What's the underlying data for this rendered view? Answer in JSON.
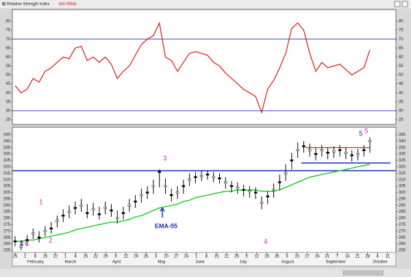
{
  "chart_data": [
    {
      "type": "line",
      "title": "Relative Strength Index",
      "indicator_value": "(64.0564)",
      "ylim": [
        25,
        80
      ],
      "yticks": [
        80,
        75,
        70,
        65,
        60,
        55,
        50,
        45,
        40,
        35,
        30,
        25
      ],
      "levels": [
        70,
        30
      ],
      "level_color": "#3a3ad0",
      "series": [
        {
          "name": "RSI",
          "color": "#e01010",
          "values": [
            44,
            40,
            42,
            48,
            46,
            52,
            54,
            57,
            60,
            59,
            65,
            66,
            58,
            60,
            57,
            60,
            56,
            48,
            52,
            55,
            61,
            67,
            70,
            72,
            79,
            60,
            58,
            52,
            57,
            62,
            63,
            62,
            61,
            57,
            55,
            51,
            48,
            45,
            42,
            40,
            38,
            29,
            42,
            47,
            54,
            62,
            76,
            79,
            75,
            62,
            52,
            57,
            54,
            55,
            56,
            53,
            50,
            52,
            54,
            64
          ]
        }
      ]
    },
    {
      "type": "ohlc",
      "ylim": [
        255,
        345
      ],
      "yticks": [
        345,
        340,
        335,
        330,
        325,
        320,
        315,
        310,
        305,
        300,
        295,
        290,
        285,
        280,
        275,
        270,
        265,
        260,
        255
      ],
      "x_ticks": [
        "25",
        "1",
        "8",
        "15",
        "22",
        "1",
        "8",
        "15",
        "22",
        "29",
        "5",
        "12",
        "19",
        "26",
        "3",
        "10",
        "17",
        "24",
        "1",
        "8",
        "15",
        "22",
        "29",
        "5",
        "12",
        "19",
        "26",
        "3",
        "10",
        "17",
        "24",
        "31",
        "7",
        "14",
        "21",
        "28",
        "4",
        "11"
      ],
      "months": [
        "February",
        "March",
        "April",
        "May",
        "June",
        "July",
        "August",
        "September",
        "October"
      ],
      "high": [
        266,
        263,
        267,
        272,
        270,
        274,
        277,
        282,
        287,
        290,
        293,
        295,
        291,
        292,
        289,
        293,
        291,
        286,
        289,
        295,
        298,
        303,
        305,
        310,
        318,
        311,
        303,
        305,
        310,
        315,
        316,
        317,
        317,
        316,
        315,
        312,
        309,
        308,
        306,
        305,
        304,
        297,
        301,
        307,
        314,
        322,
        331,
        339,
        340,
        338,
        335,
        337,
        335,
        336,
        337,
        335,
        333,
        334,
        337,
        343
      ],
      "low": [
        258,
        255,
        259,
        264,
        261,
        266,
        268,
        273,
        277,
        280,
        283,
        285,
        280,
        282,
        279,
        283,
        281,
        276,
        279,
        285,
        288,
        292,
        295,
        299,
        304,
        299,
        293,
        295,
        299,
        305,
        307,
        309,
        310,
        308,
        307,
        303,
        300,
        299,
        297,
        296,
        295,
        287,
        291,
        296,
        302,
        309,
        318,
        327,
        331,
        328,
        325,
        328,
        326,
        327,
        328,
        326,
        324,
        325,
        328,
        331
      ],
      "close": [
        262,
        258,
        263,
        268,
        265,
        270,
        272,
        278,
        282,
        285,
        288,
        290,
        284,
        287,
        283,
        288,
        286,
        280,
        284,
        290,
        293,
        298,
        300,
        305,
        316,
        305,
        298,
        300,
        305,
        310,
        312,
        313,
        314,
        312,
        311,
        308,
        305,
        304,
        302,
        301,
        300,
        292,
        297,
        302,
        308,
        315,
        325,
        333,
        336,
        333,
        330,
        333,
        331,
        332,
        333,
        331,
        329,
        330,
        333,
        340
      ],
      "series": [
        {
          "name": "EMA-55",
          "color": "#22cc22",
          "values": [
            262,
            262,
            263,
            263,
            264,
            265,
            266,
            267,
            268,
            269,
            271,
            272,
            273,
            274,
            275,
            276,
            277,
            277,
            278,
            279,
            281,
            282,
            284,
            286,
            288,
            289,
            290,
            291,
            293,
            294,
            296,
            297,
            298,
            299,
            300,
            301,
            301,
            302,
            302,
            302,
            302,
            301,
            301,
            301,
            302,
            304,
            306,
            308,
            310,
            312,
            313,
            314,
            315,
            316,
            317,
            318,
            319,
            320,
            321,
            322
          ]
        }
      ],
      "support_lines": [
        {
          "value": 317,
          "color": "#2233bb"
        },
        {
          "value": 323,
          "color": "#2233bb"
        }
      ],
      "resistance_line": {
        "value": 335,
        "color": "#dd2222"
      },
      "annotations": [
        {
          "text": "4",
          "color": "#2222cc"
        },
        {
          "text": "C",
          "color": "#cc22cc"
        },
        {
          "text": "1",
          "color": "#cc22cc"
        },
        {
          "text": "2",
          "color": "#cc22cc"
        },
        {
          "text": "3",
          "color": "#cc22cc"
        },
        {
          "text": "4",
          "color": "#cc22cc"
        },
        {
          "text": "5",
          "color": "#2222cc"
        },
        {
          "text": "5",
          "color": "#cc22cc"
        },
        {
          "text": "EMA-55",
          "color": "#1a2fb0"
        }
      ]
    }
  ]
}
